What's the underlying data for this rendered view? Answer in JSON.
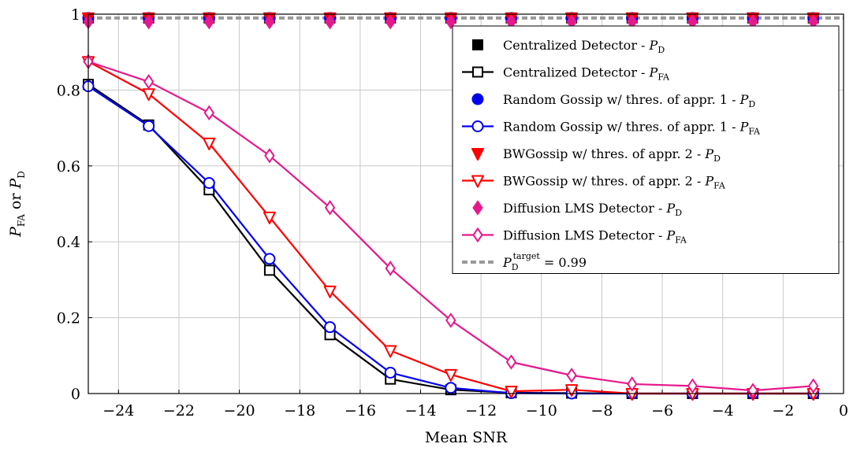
{
  "chart_data": {
    "type": "line",
    "xlabel": "Mean SNR",
    "ylabel_parts": {
      "main1": "P",
      "sub1": "FA",
      "mid": " or ",
      "main2": "P",
      "sub2": "D"
    },
    "xlim": [
      -25,
      0
    ],
    "ylim": [
      0,
      1
    ],
    "xticks": [
      -24,
      -22,
      -20,
      -18,
      -16,
      -14,
      -12,
      -10,
      -8,
      -6,
      -4,
      -2,
      0
    ],
    "yticks": [
      0,
      0.2,
      0.4,
      0.6,
      0.8,
      1
    ],
    "xtick_labels": [
      "−24",
      "−22",
      "−20",
      "−18",
      "−16",
      "−14",
      "−12",
      "−10",
      "−8",
      "−6",
      "−4",
      "−2",
      "0"
    ],
    "ytick_labels": [
      "0",
      "0.2",
      "0.4",
      "0.6",
      "0.8",
      "1"
    ],
    "grid": true,
    "legend_position": "top-right",
    "x": [
      -25,
      -23,
      -21,
      -19,
      -17,
      -15,
      -13,
      -11,
      -9,
      -7,
      -5,
      -3,
      -1
    ],
    "series": [
      {
        "name": "Centralized Detector - P_D",
        "legend_main": "Centralized Detector - ",
        "legend_var": "P",
        "legend_sub": "D",
        "color": "#000000",
        "marker": "square",
        "filled": true,
        "line": false,
        "values": [
          0.99,
          0.99,
          0.99,
          0.99,
          0.99,
          0.99,
          0.99,
          0.99,
          0.99,
          0.99,
          0.99,
          0.99,
          0.99
        ]
      },
      {
        "name": "Centralized Detector - P_FA",
        "legend_main": "Centralized Detector - ",
        "legend_var": "P",
        "legend_sub": "FA",
        "color": "#000000",
        "marker": "square",
        "filled": false,
        "line": true,
        "values": [
          0.815,
          0.708,
          0.537,
          0.325,
          0.155,
          0.038,
          0.01,
          0.002,
          0.001,
          0.0,
          0.0,
          0.0,
          0.0
        ]
      },
      {
        "name": "Random Gossip w/ thres. of appr. 1 - P_D",
        "legend_main": "Random Gossip w/ thres. of appr. 1 - ",
        "legend_var": "P",
        "legend_sub": "D",
        "color": "#0000ee",
        "marker": "circle",
        "filled": true,
        "line": false,
        "values": [
          0.99,
          0.99,
          0.99,
          0.99,
          0.99,
          0.99,
          0.99,
          0.99,
          0.99,
          0.99,
          0.99,
          0.99,
          0.99
        ]
      },
      {
        "name": "Random Gossip w/ thres. of appr. 1 - P_FA",
        "legend_main": "Random Gossip w/ thres. of appr. 1 - ",
        "legend_var": "P",
        "legend_sub": "FA",
        "color": "#0000ee",
        "marker": "circle",
        "filled": false,
        "line": true,
        "values": [
          0.81,
          0.705,
          0.555,
          0.355,
          0.175,
          0.055,
          0.015,
          0.001,
          0.0,
          0.0,
          0.0,
          0.0,
          0.0
        ]
      },
      {
        "name": "BWGossip w/ thres. of appr. 2 - P_D",
        "legend_main": "BWGossip w/ thres. of appr. 2 - ",
        "legend_var": "P",
        "legend_sub": "D",
        "color": "#ff0000",
        "marker": "triangle-down",
        "filled": true,
        "line": false,
        "values": [
          0.99,
          0.99,
          0.99,
          0.99,
          0.99,
          0.99,
          0.99,
          0.99,
          0.99,
          0.99,
          0.99,
          0.99,
          0.99
        ]
      },
      {
        "name": "BWGossip w/ thres. of appr. 2 - P_FA",
        "legend_main": "BWGossip w/ thres. of appr. 2 - ",
        "legend_var": "P",
        "legend_sub": "FA",
        "color": "#ff0000",
        "marker": "triangle-down",
        "filled": false,
        "line": true,
        "values": [
          0.875,
          0.79,
          0.66,
          0.465,
          0.27,
          0.113,
          0.05,
          0.006,
          0.01,
          0.0,
          0.0,
          0.0,
          0.0
        ]
      },
      {
        "name": "Diffusion LMS Detector - P_D",
        "legend_main": "Diffusion LMS Detector - ",
        "legend_var": "P",
        "legend_sub": "D",
        "color": "#e6198c",
        "marker": "diamond",
        "filled": true,
        "line": false,
        "values": [
          0.98,
          0.98,
          0.98,
          0.98,
          0.98,
          0.98,
          0.98,
          0.98,
          0.98,
          0.98,
          0.98,
          0.98,
          0.98
        ]
      },
      {
        "name": "Diffusion LMS Detector - P_FA",
        "legend_main": "Diffusion LMS Detector - ",
        "legend_var": "P",
        "legend_sub": "FA",
        "color": "#e6198c",
        "marker": "diamond",
        "filled": false,
        "line": true,
        "values": [
          0.875,
          0.822,
          0.74,
          0.627,
          0.49,
          0.33,
          0.193,
          0.083,
          0.048,
          0.025,
          0.02,
          0.008,
          0.02
        ]
      }
    ],
    "target_line": {
      "value": 0.99,
      "color": "#999999",
      "legend_main": "P",
      "legend_sub": "D",
      "legend_sup": "target",
      "legend_rest": " = 0.99"
    }
  }
}
